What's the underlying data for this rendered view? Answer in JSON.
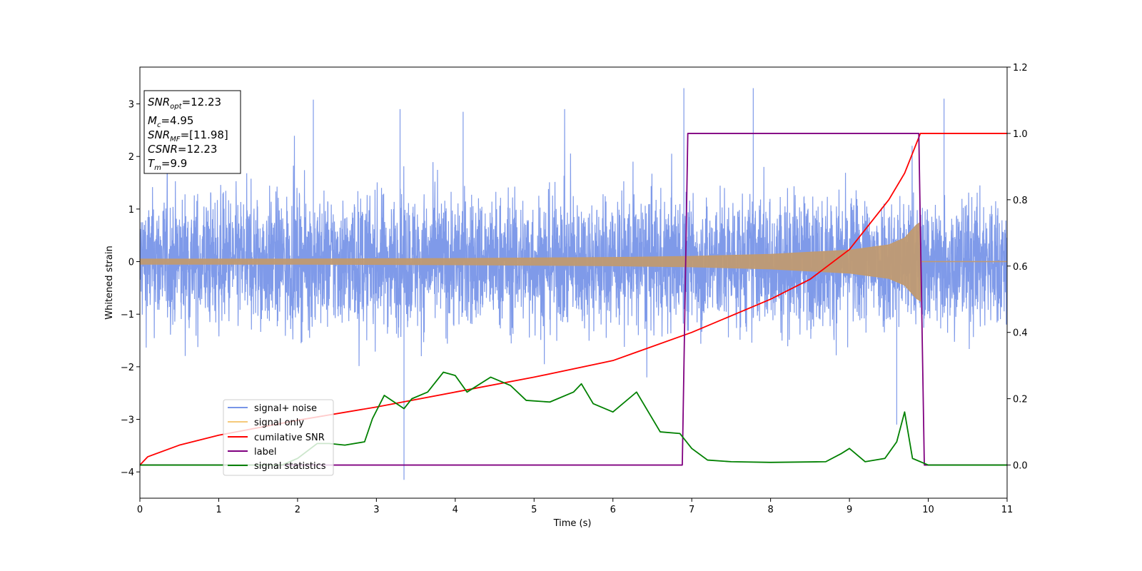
{
  "chart_data": {
    "type": "line",
    "title": "",
    "xlabel": "Time (s)",
    "ylabel": "Whitened strain",
    "y2label": "",
    "xlim": [
      0,
      11
    ],
    "ylim": [
      -4.5,
      3.7
    ],
    "y2lim": [
      -0.1,
      1.2
    ],
    "x_ticks": [
      "0",
      "1",
      "2",
      "3",
      "4",
      "5",
      "6",
      "7",
      "8",
      "9",
      "10",
      "11"
    ],
    "y_ticks": [
      "3",
      "2",
      "1",
      "0",
      "−1",
      "−2",
      "−3",
      "−4"
    ],
    "y_tick_values": [
      3,
      2,
      1,
      0,
      -1,
      -2,
      -3,
      -4
    ],
    "y2_ticks": [
      "1.2",
      "1.0",
      "0.8",
      "0.6",
      "0.4",
      "0.2",
      "0.0"
    ],
    "y2_tick_values": [
      1.2,
      1.0,
      0.8,
      0.6,
      0.4,
      0.2,
      0.0
    ],
    "grid": false,
    "legend_position": "lower-left",
    "info_box": {
      "snr_opt": {
        "base": "SNR",
        "sub": "opt",
        "value": "=12.23"
      },
      "mc": {
        "base": "M",
        "sub": "c",
        "value": "=4.95"
      },
      "snr_mf": {
        "base": "SNR",
        "sub": "MF",
        "value": "=[11.98]"
      },
      "csnr": {
        "base": "CSNR",
        "value": "=12.23"
      },
      "tm": {
        "base": "T",
        "sub": "m",
        "value": "=9.9"
      }
    },
    "series": [
      {
        "name": "signal+ noise",
        "axis": "left",
        "color": "#7895e8",
        "kind": "noise band",
        "typical_amplitude": [
          -1.4,
          1.4
        ],
        "outliers": [
          {
            "x": 2.2,
            "y": 3.08
          },
          {
            "x": 3.3,
            "y": 2.9
          },
          {
            "x": 3.35,
            "y": -4.15
          },
          {
            "x": 4.1,
            "y": 2.85
          },
          {
            "x": 6.9,
            "y": 3.3
          },
          {
            "x": 7.78,
            "y": 3.3
          },
          {
            "x": 9.6,
            "y": -3.1
          },
          {
            "x": 10.2,
            "y": 3.1
          }
        ]
      },
      {
        "name": "signal only",
        "axis": "left",
        "color": "#c09a72",
        "kind": "chirp envelope",
        "envelope": [
          {
            "x": 0,
            "y": 0.05
          },
          {
            "x": 2,
            "y": 0.05
          },
          {
            "x": 4,
            "y": 0.06
          },
          {
            "x": 6,
            "y": 0.08
          },
          {
            "x": 7,
            "y": 0.1
          },
          {
            "x": 8,
            "y": 0.14
          },
          {
            "x": 9,
            "y": 0.22
          },
          {
            "x": 9.5,
            "y": 0.32
          },
          {
            "x": 9.7,
            "y": 0.45
          },
          {
            "x": 9.85,
            "y": 0.7
          },
          {
            "x": 9.9,
            "y": 0.75
          }
        ]
      },
      {
        "name": "cumilative SNR",
        "axis": "right",
        "color": "#ff0000",
        "points": [
          {
            "x": 0,
            "y": 0.0
          },
          {
            "x": 0.1,
            "y": 0.025
          },
          {
            "x": 0.5,
            "y": 0.06
          },
          {
            "x": 1,
            "y": 0.09
          },
          {
            "x": 2,
            "y": 0.135
          },
          {
            "x": 3,
            "y": 0.175
          },
          {
            "x": 4,
            "y": 0.22
          },
          {
            "x": 5,
            "y": 0.265
          },
          {
            "x": 6,
            "y": 0.315
          },
          {
            "x": 7,
            "y": 0.4
          },
          {
            "x": 8,
            "y": 0.5
          },
          {
            "x": 8.5,
            "y": 0.56
          },
          {
            "x": 9,
            "y": 0.65
          },
          {
            "x": 9.5,
            "y": 0.8
          },
          {
            "x": 9.7,
            "y": 0.88
          },
          {
            "x": 9.9,
            "y": 1.0
          },
          {
            "x": 11,
            "y": 1.0
          }
        ]
      },
      {
        "name": "label",
        "axis": "right",
        "color": "#800080",
        "points": [
          {
            "x": 0,
            "y": 0.0
          },
          {
            "x": 6.88,
            "y": 0.0
          },
          {
            "x": 6.95,
            "y": 1.0
          },
          {
            "x": 9.88,
            "y": 1.0
          },
          {
            "x": 9.95,
            "y": 0.0
          },
          {
            "x": 11,
            "y": 0.0
          }
        ]
      },
      {
        "name": "signal statistics",
        "axis": "right",
        "color": "#008000",
        "points": [
          {
            "x": 0,
            "y": 0.0
          },
          {
            "x": 1.8,
            "y": 0.0
          },
          {
            "x": 2.0,
            "y": 0.02
          },
          {
            "x": 2.25,
            "y": 0.065
          },
          {
            "x": 2.4,
            "y": 0.065
          },
          {
            "x": 2.6,
            "y": 0.06
          },
          {
            "x": 2.85,
            "y": 0.07
          },
          {
            "x": 2.95,
            "y": 0.14
          },
          {
            "x": 3.1,
            "y": 0.21
          },
          {
            "x": 3.35,
            "y": 0.17
          },
          {
            "x": 3.45,
            "y": 0.2
          },
          {
            "x": 3.65,
            "y": 0.22
          },
          {
            "x": 3.85,
            "y": 0.28
          },
          {
            "x": 4.0,
            "y": 0.27
          },
          {
            "x": 4.15,
            "y": 0.22
          },
          {
            "x": 4.45,
            "y": 0.265
          },
          {
            "x": 4.7,
            "y": 0.24
          },
          {
            "x": 4.9,
            "y": 0.195
          },
          {
            "x": 5.2,
            "y": 0.19
          },
          {
            "x": 5.5,
            "y": 0.22
          },
          {
            "x": 5.6,
            "y": 0.245
          },
          {
            "x": 5.75,
            "y": 0.185
          },
          {
            "x": 6.0,
            "y": 0.16
          },
          {
            "x": 6.3,
            "y": 0.22
          },
          {
            "x": 6.6,
            "y": 0.1
          },
          {
            "x": 6.85,
            "y": 0.095
          },
          {
            "x": 7.0,
            "y": 0.05
          },
          {
            "x": 7.2,
            "y": 0.015
          },
          {
            "x": 7.5,
            "y": 0.01
          },
          {
            "x": 8.0,
            "y": 0.008
          },
          {
            "x": 8.7,
            "y": 0.01
          },
          {
            "x": 8.9,
            "y": 0.035
          },
          {
            "x": 9.0,
            "y": 0.05
          },
          {
            "x": 9.2,
            "y": 0.01
          },
          {
            "x": 9.45,
            "y": 0.02
          },
          {
            "x": 9.6,
            "y": 0.07
          },
          {
            "x": 9.7,
            "y": 0.16
          },
          {
            "x": 9.8,
            "y": 0.02
          },
          {
            "x": 10.0,
            "y": 0.0
          },
          {
            "x": 11,
            "y": 0.0
          }
        ]
      }
    ]
  }
}
